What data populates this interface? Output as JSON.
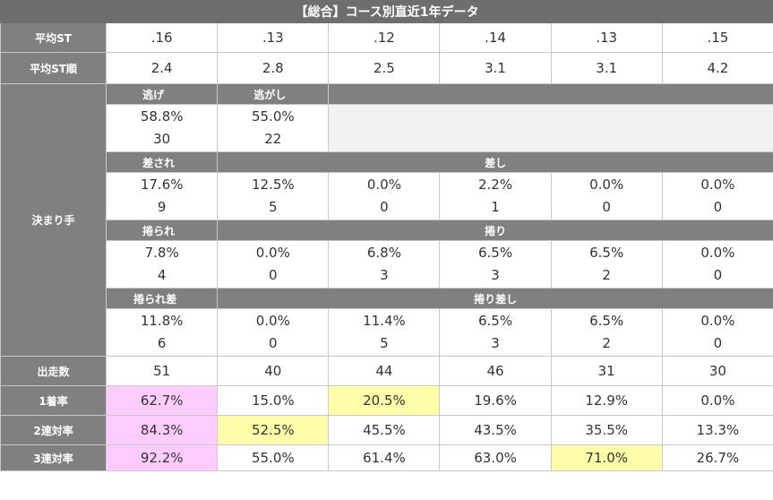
{
  "title": "【総合】コース別直近1年データ",
  "avg_st": {
    "label": "平均ST",
    "values": [
      ".16",
      ".13",
      ".12",
      ".14",
      ".13",
      ".15"
    ]
  },
  "avg_st_rank": {
    "label": "平均ST順",
    "values": [
      "2.4",
      "2.8",
      "2.5",
      "3.1",
      "3.1",
      "4.2"
    ]
  },
  "kimarite": {
    "label": "決まり手",
    "nige": {
      "label": "逃げ",
      "rate": "58.8%",
      "count": "30"
    },
    "nigashi": {
      "label": "逃がし",
      "rate": "55.0%",
      "count": "22"
    },
    "sasare": {
      "label": "差され",
      "rate": "17.6%",
      "count": "9"
    },
    "sashi": {
      "label": "差し",
      "rates": [
        "12.5%",
        "0.0%",
        "2.2%",
        "0.0%",
        "0.0%"
      ],
      "counts": [
        "5",
        "0",
        "1",
        "0",
        "0"
      ]
    },
    "makurare": {
      "label": "捲られ",
      "rate": "7.8%",
      "count": "4"
    },
    "makuri": {
      "label": "捲り",
      "rates": [
        "0.0%",
        "6.8%",
        "6.5%",
        "6.5%",
        "0.0%"
      ],
      "counts": [
        "0",
        "3",
        "3",
        "2",
        "0"
      ]
    },
    "makurare_sashi": {
      "label": "捲られ差",
      "rate": "11.8%",
      "count": "6"
    },
    "makuri_sashi": {
      "label": "捲り差し",
      "rates": [
        "0.0%",
        "11.4%",
        "6.5%",
        "6.5%",
        "0.0%"
      ],
      "counts": [
        "0",
        "5",
        "3",
        "2",
        "0"
      ]
    }
  },
  "starts": {
    "label": "出走数",
    "values": [
      "51",
      "40",
      "44",
      "46",
      "31",
      "30"
    ]
  },
  "win_rate": {
    "label": "1着率",
    "values": [
      "62.7%",
      "15.0%",
      "20.5%",
      "19.6%",
      "12.9%",
      "0.0%"
    ]
  },
  "top2_rate": {
    "label": "2連対率",
    "values": [
      "84.3%",
      "52.5%",
      "45.5%",
      "43.5%",
      "35.5%",
      "13.3%"
    ]
  },
  "top3_rate": {
    "label": "3連対率",
    "values": [
      "92.2%",
      "55.0%",
      "61.4%",
      "63.0%",
      "71.0%",
      "26.7%"
    ]
  },
  "highlight_colors": {
    "first": "#ffccff",
    "second": "#ffffaa"
  }
}
